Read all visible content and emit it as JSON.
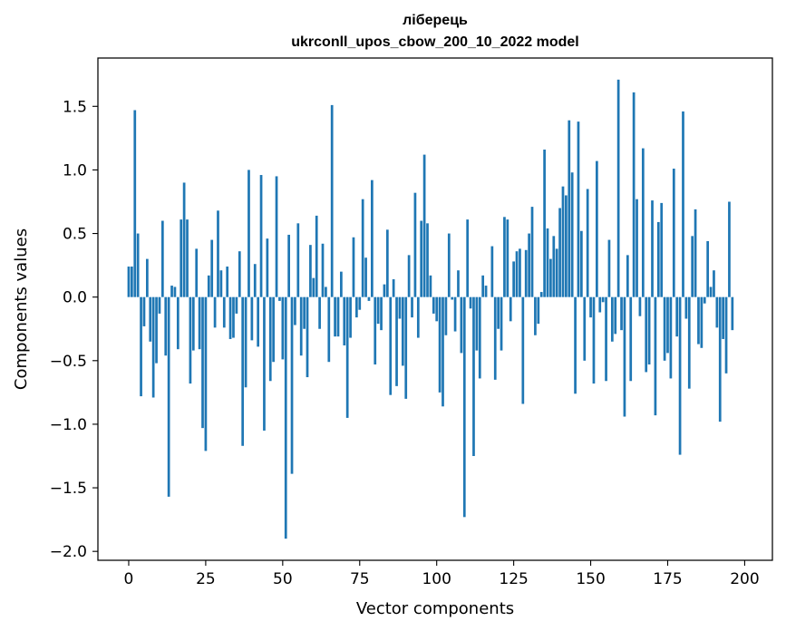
{
  "chart_data": {
    "type": "bar",
    "title": "ліберець",
    "subtitle": "ukrconll_upos_cbow_200_10_2022 model",
    "xlabel": "Vector components",
    "ylabel": "Components values",
    "xlim": [
      -10,
      209
    ],
    "ylim": [
      -2.07,
      1.88
    ],
    "xticks": [
      0,
      25,
      50,
      75,
      100,
      125,
      150,
      175,
      200
    ],
    "yticks": [
      -2.0,
      -1.5,
      -1.0,
      -0.5,
      0.0,
      0.5,
      1.0,
      1.5
    ],
    "ytick_labels": [
      "−2.0",
      "−1.5",
      "−1.0",
      "−0.5",
      "0.0",
      "0.5",
      "1.0",
      "1.5"
    ],
    "grid": false,
    "bar_color": "#1f77b4",
    "values": [
      0.24,
      0.24,
      1.47,
      0.5,
      -0.78,
      -0.23,
      0.3,
      -0.35,
      -0.79,
      -0.52,
      -0.13,
      0.6,
      -0.46,
      -1.57,
      0.09,
      0.08,
      -0.41,
      0.61,
      0.9,
      0.61,
      -0.68,
      -0.42,
      0.38,
      -0.41,
      -1.03,
      -1.21,
      0.17,
      0.45,
      -0.24,
      0.68,
      0.21,
      -0.24,
      0.24,
      -0.33,
      -0.32,
      -0.13,
      0.36,
      -1.17,
      -0.71,
      1.0,
      -0.34,
      0.26,
      -0.39,
      0.96,
      -1.05,
      0.46,
      -0.66,
      -0.51,
      0.95,
      -0.03,
      -0.49,
      -1.9,
      0.49,
      -1.39,
      -0.22,
      0.58,
      -0.46,
      -0.25,
      -0.63,
      0.41,
      0.15,
      0.64,
      -0.25,
      0.42,
      0.08,
      -0.51,
      1.51,
      -0.31,
      -0.31,
      0.2,
      -0.38,
      -0.95,
      -0.32,
      0.47,
      -0.16,
      -0.1,
      0.77,
      0.31,
      -0.03,
      0.92,
      -0.53,
      -0.21,
      -0.26,
      0.1,
      0.53,
      -0.77,
      0.14,
      -0.7,
      -0.17,
      -0.54,
      -0.8,
      0.33,
      -0.16,
      0.82,
      -0.32,
      0.6,
      1.12,
      0.58,
      0.17,
      -0.13,
      -0.19,
      -0.75,
      -0.86,
      -0.3,
      0.5,
      -0.02,
      -0.27,
      0.21,
      -0.44,
      -1.73,
      0.61,
      -0.09,
      -1.25,
      -0.42,
      -0.64,
      0.17,
      0.09,
      0.0,
      0.4,
      -0.65,
      -0.25,
      -0.42,
      0.63,
      0.61,
      -0.19,
      0.28,
      0.36,
      0.38,
      -0.84,
      0.37,
      0.5,
      0.71,
      -0.3,
      -0.21,
      0.04,
      1.16,
      0.54,
      0.3,
      0.48,
      0.38,
      0.7,
      0.87,
      0.8,
      1.39,
      0.98,
      -0.76,
      1.38,
      0.52,
      -0.5,
      0.85,
      -0.16,
      -0.68,
      1.07,
      -0.12,
      -0.04,
      -0.66,
      0.45,
      -0.35,
      -0.29,
      1.71,
      -0.26,
      -0.94,
      0.33,
      -0.66,
      1.61,
      0.77,
      -0.15,
      1.17,
      -0.59,
      -0.53,
      0.76,
      -0.93,
      0.59,
      0.74,
      -0.5,
      -0.44,
      -0.64,
      1.01,
      -0.31,
      -1.24,
      1.46,
      -0.17,
      -0.72,
      0.48,
      0.69,
      -0.37,
      -0.4,
      -0.05,
      0.44,
      0.08,
      0.21,
      -0.24,
      -0.98,
      -0.33,
      -0.6,
      0.75,
      -0.26
    ]
  }
}
